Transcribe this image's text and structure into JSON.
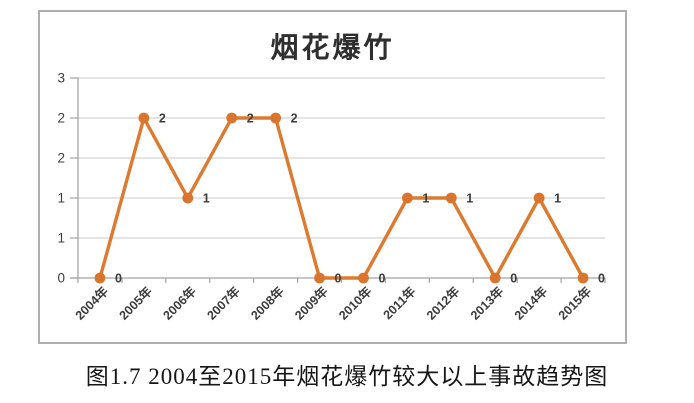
{
  "figure": {
    "caption": "图1.7 2004至2015年烟花爆竹较大以上事故趋势图"
  },
  "chart_data": {
    "type": "line",
    "title": "烟花爆竹",
    "categories": [
      "2004年",
      "2005年",
      "2006年",
      "2007年",
      "2008年",
      "2009年",
      "2010年",
      "2011年",
      "2012年",
      "2013年",
      "2014年",
      "2015年"
    ],
    "series": [
      {
        "name": "烟花爆竹",
        "values": [
          0,
          2,
          1,
          2,
          2,
          0,
          0,
          1,
          1,
          0,
          1,
          0
        ]
      }
    ],
    "data_labels_shown": true,
    "xlabel": "",
    "ylabel": "",
    "y_axis": {
      "min": 0,
      "max": 2.5,
      "gridline_interval": 0.5,
      "tick_labels_top_to_bottom": [
        "3",
        "2",
        "2",
        "1",
        "1",
        "0"
      ]
    },
    "x_tick_rotation_degrees": -45,
    "grid": true,
    "legend_position": "none",
    "colors": {
      "line": "#dc7a30",
      "marker": "#d9752c",
      "gridline": "#c9c9c9",
      "axis": "#a3a3a3",
      "tick_label": "#3c3c3c",
      "data_label": "#3c3c3c",
      "title": "#2f2f2f",
      "chart_border": "#aeaeae",
      "caption_text": "#161616",
      "background": "#ffffff"
    }
  }
}
